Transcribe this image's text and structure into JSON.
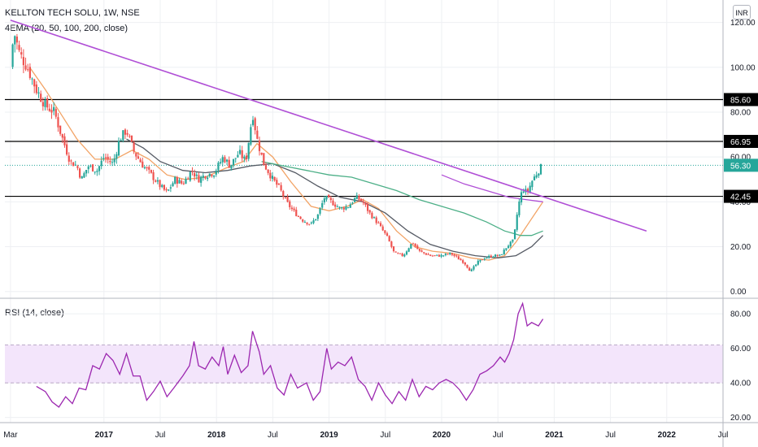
{
  "header": {
    "symbol": "KELLTON TECH SOLU, 1W, NSE",
    "indicator": "4EMA (20, 50, 100, 200, close)",
    "currency": "INR"
  },
  "rsi_panel": {
    "label": "RSI (14, close)"
  },
  "colors": {
    "up": "#26a69a",
    "down": "#ef5350",
    "trendline": "#b04fd6",
    "ema20": "#f2a365",
    "ema50": "#555a64",
    "ema100": "#4caf87",
    "rsi": "#9c27b0",
    "rsi_band": "#f3e5fb",
    "level_line": "#000000",
    "last_price": "#26a69a"
  },
  "chart_data": [
    {
      "type": "candlestick",
      "title": "KELLTON TECH SOLU, 1W, NSE",
      "y_ticks": [
        0,
        20,
        40,
        60,
        80,
        100,
        120
      ],
      "y_tick_labels": [
        "0.00",
        "20.00",
        "40.00",
        "60.00",
        "80.00",
        "100.00",
        "120.00"
      ],
      "ylim": [
        -3,
        130
      ],
      "x_ticks": [
        {
          "t": 2016.17,
          "label": "Mar"
        },
        {
          "t": 2017.0,
          "label": "2017"
        },
        {
          "t": 2017.5,
          "label": "Jul"
        },
        {
          "t": 2018.0,
          "label": "2018"
        },
        {
          "t": 2018.5,
          "label": "Jul"
        },
        {
          "t": 2019.0,
          "label": "2019"
        },
        {
          "t": 2019.5,
          "label": "Jul"
        },
        {
          "t": 2020.0,
          "label": "2020"
        },
        {
          "t": 2020.5,
          "label": "Jul"
        },
        {
          "t": 2021.0,
          "label": "2021"
        },
        {
          "t": 2021.5,
          "label": "Jul"
        },
        {
          "t": 2022.0,
          "label": "2022"
        },
        {
          "t": 2022.5,
          "label": "Jul"
        }
      ],
      "xlim": [
        2016.12,
        2022.5
      ],
      "horizontal_levels": [
        {
          "value": 85.6,
          "label": "85.60"
        },
        {
          "value": 66.95,
          "label": "66.95"
        },
        {
          "value": 42.45,
          "label": "42.45"
        }
      ],
      "last_price": {
        "value": 56.3,
        "label": "56.30"
      },
      "trendlines": [
        {
          "name": "",
          "points": [
            [
              2016.17,
              121
            ],
            [
              2021.82,
              27
            ]
          ]
        }
      ],
      "price_path": [
        [
          2016.17,
          100
        ],
        [
          2016.2,
          116
        ],
        [
          2016.25,
          106
        ],
        [
          2016.32,
          100
        ],
        [
          2016.4,
          90
        ],
        [
          2016.48,
          83
        ],
        [
          2016.56,
          80
        ],
        [
          2016.62,
          70
        ],
        [
          2016.7,
          58
        ],
        [
          2016.76,
          56
        ],
        [
          2016.8,
          50
        ],
        [
          2016.86,
          56
        ],
        [
          2016.94,
          54
        ],
        [
          2017.0,
          60
        ],
        [
          2017.08,
          57
        ],
        [
          2017.14,
          68
        ],
        [
          2017.2,
          72
        ],
        [
          2017.27,
          62
        ],
        [
          2017.35,
          56
        ],
        [
          2017.42,
          52
        ],
        [
          2017.5,
          47
        ],
        [
          2017.56,
          44
        ],
        [
          2017.63,
          50
        ],
        [
          2017.7,
          48
        ],
        [
          2017.78,
          54
        ],
        [
          2017.84,
          50
        ],
        [
          2017.9,
          52
        ],
        [
          2017.98,
          53
        ],
        [
          2018.06,
          60
        ],
        [
          2018.12,
          56
        ],
        [
          2018.2,
          62
        ],
        [
          2018.26,
          58
        ],
        [
          2018.3,
          72
        ],
        [
          2018.32,
          80
        ],
        [
          2018.36,
          68
        ],
        [
          2018.42,
          57
        ],
        [
          2018.5,
          50
        ],
        [
          2018.56,
          46
        ],
        [
          2018.62,
          40
        ],
        [
          2018.68,
          36
        ],
        [
          2018.76,
          32
        ],
        [
          2018.84,
          30
        ],
        [
          2018.9,
          34
        ],
        [
          2018.96,
          42
        ],
        [
          2019.02,
          40
        ],
        [
          2019.1,
          37
        ],
        [
          2019.17,
          38
        ],
        [
          2019.24,
          42
        ],
        [
          2019.3,
          40
        ],
        [
          2019.36,
          35
        ],
        [
          2019.44,
          30
        ],
        [
          2019.52,
          24
        ],
        [
          2019.58,
          17
        ],
        [
          2019.66,
          16
        ],
        [
          2019.74,
          22
        ],
        [
          2019.8,
          18
        ],
        [
          2019.9,
          16
        ],
        [
          2020.0,
          16
        ],
        [
          2020.08,
          17
        ],
        [
          2020.14,
          15
        ],
        [
          2020.2,
          13
        ],
        [
          2020.26,
          9
        ],
        [
          2020.32,
          13
        ],
        [
          2020.38,
          15
        ],
        [
          2020.46,
          16
        ],
        [
          2020.52,
          16
        ],
        [
          2020.58,
          20
        ],
        [
          2020.64,
          23
        ],
        [
          2020.68,
          38
        ],
        [
          2020.72,
          46
        ],
        [
          2020.76,
          44
        ],
        [
          2020.8,
          49
        ],
        [
          2020.86,
          54
        ],
        [
          2020.9,
          56.3
        ]
      ],
      "series": [
        {
          "name": "",
          "role": "ema20",
          "points": [
            [
              2016.34,
              100
            ],
            [
              2016.48,
              90
            ],
            [
              2016.62,
              79
            ],
            [
              2016.76,
              68
            ],
            [
              2016.92,
              59
            ],
            [
              2017.1,
              59
            ],
            [
              2017.25,
              63
            ],
            [
              2017.4,
              59
            ],
            [
              2017.56,
              52
            ],
            [
              2017.72,
              50
            ],
            [
              2017.9,
              51
            ],
            [
              2018.08,
              55
            ],
            [
              2018.24,
              58
            ],
            [
              2018.36,
              66
            ],
            [
              2018.5,
              60
            ],
            [
              2018.66,
              49
            ],
            [
              2018.84,
              38
            ],
            [
              2019.0,
              36
            ],
            [
              2019.16,
              38
            ],
            [
              2019.3,
              41
            ],
            [
              2019.44,
              37
            ],
            [
              2019.6,
              27
            ],
            [
              2019.76,
              20
            ],
            [
              2019.92,
              18
            ],
            [
              2020.1,
              17
            ],
            [
              2020.26,
              15
            ],
            [
              2020.42,
              14
            ],
            [
              2020.56,
              16
            ],
            [
              2020.66,
              22
            ],
            [
              2020.78,
              31
            ],
            [
              2020.9,
              40
            ]
          ]
        },
        {
          "name": "",
          "role": "ema50",
          "points": [
            [
              2017.2,
              68
            ],
            [
              2017.35,
              64
            ],
            [
              2017.5,
              58
            ],
            [
              2017.7,
              54
            ],
            [
              2017.9,
              53
            ],
            [
              2018.1,
              54
            ],
            [
              2018.3,
              56
            ],
            [
              2018.5,
              57
            ],
            [
              2018.7,
              53
            ],
            [
              2018.9,
              47
            ],
            [
              2019.1,
              42
            ],
            [
              2019.3,
              40
            ],
            [
              2019.5,
              35
            ],
            [
              2019.7,
              27
            ],
            [
              2019.9,
              21
            ],
            [
              2020.1,
              18
            ],
            [
              2020.3,
              16
            ],
            [
              2020.5,
              15
            ],
            [
              2020.66,
              16
            ],
            [
              2020.8,
              20
            ],
            [
              2020.9,
              25
            ]
          ]
        },
        {
          "name": "",
          "role": "ema100",
          "points": [
            [
              2018.4,
              58
            ],
            [
              2018.6,
              56
            ],
            [
              2018.8,
              54
            ],
            [
              2019.0,
              52
            ],
            [
              2019.2,
              51
            ],
            [
              2019.4,
              48
            ],
            [
              2019.6,
              45
            ],
            [
              2019.8,
              41
            ],
            [
              2020.0,
              38
            ],
            [
              2020.2,
              35
            ],
            [
              2020.4,
              31
            ],
            [
              2020.56,
              27
            ],
            [
              2020.7,
              25
            ],
            [
              2020.8,
              25
            ],
            [
              2020.9,
              27
            ]
          ]
        },
        {
          "name": "",
          "role": "ema200",
          "points": [
            [
              2020.0,
              52
            ],
            [
              2020.2,
              48
            ],
            [
              2020.4,
              45
            ],
            [
              2020.6,
              42
            ],
            [
              2020.75,
              41
            ],
            [
              2020.9,
              40
            ]
          ]
        }
      ]
    },
    {
      "type": "line",
      "title": "RSI (14, close)",
      "y_ticks": [
        20,
        40,
        60,
        80
      ],
      "y_tick_labels": [
        "20.00",
        "40.00",
        "60.00",
        "80.00"
      ],
      "ylim": [
        17,
        89
      ],
      "band": [
        40,
        62
      ],
      "series": [
        {
          "name": "",
          "points": [
            [
              2016.4,
              38
            ],
            [
              2016.48,
              35
            ],
            [
              2016.54,
              29
            ],
            [
              2016.6,
              26
            ],
            [
              2016.66,
              32
            ],
            [
              2016.72,
              28
            ],
            [
              2016.78,
              37
            ],
            [
              2016.84,
              36
            ],
            [
              2016.9,
              50
            ],
            [
              2016.96,
              48
            ],
            [
              2017.02,
              57
            ],
            [
              2017.08,
              53
            ],
            [
              2017.14,
              45
            ],
            [
              2017.2,
              57
            ],
            [
              2017.26,
              44
            ],
            [
              2017.32,
              44
            ],
            [
              2017.38,
              30
            ],
            [
              2017.44,
              35
            ],
            [
              2017.5,
              41
            ],
            [
              2017.56,
              32
            ],
            [
              2017.62,
              37
            ],
            [
              2017.7,
              44
            ],
            [
              2017.76,
              50
            ],
            [
              2017.8,
              64
            ],
            [
              2017.84,
              50
            ],
            [
              2017.9,
              48
            ],
            [
              2017.96,
              55
            ],
            [
              2018.02,
              50
            ],
            [
              2018.06,
              61
            ],
            [
              2018.1,
              45
            ],
            [
              2018.16,
              56
            ],
            [
              2018.22,
              46
            ],
            [
              2018.28,
              50
            ],
            [
              2018.32,
              70
            ],
            [
              2018.38,
              58
            ],
            [
              2018.42,
              45
            ],
            [
              2018.48,
              50
            ],
            [
              2018.54,
              37
            ],
            [
              2018.6,
              33
            ],
            [
              2018.66,
              45
            ],
            [
              2018.72,
              37
            ],
            [
              2018.8,
              40
            ],
            [
              2018.86,
              30
            ],
            [
              2018.92,
              35
            ],
            [
              2018.98,
              60
            ],
            [
              2019.02,
              48
            ],
            [
              2019.08,
              52
            ],
            [
              2019.14,
              50
            ],
            [
              2019.2,
              55
            ],
            [
              2019.26,
              42
            ],
            [
              2019.32,
              38
            ],
            [
              2019.38,
              30
            ],
            [
              2019.44,
              40
            ],
            [
              2019.5,
              33
            ],
            [
              2019.56,
              28
            ],
            [
              2019.62,
              35
            ],
            [
              2019.68,
              30
            ],
            [
              2019.74,
              42
            ],
            [
              2019.8,
              32
            ],
            [
              2019.86,
              38
            ],
            [
              2019.92,
              36
            ],
            [
              2019.98,
              40
            ],
            [
              2020.04,
              42
            ],
            [
              2020.1,
              40
            ],
            [
              2020.16,
              36
            ],
            [
              2020.22,
              30
            ],
            [
              2020.28,
              36
            ],
            [
              2020.34,
              45
            ],
            [
              2020.4,
              47
            ],
            [
              2020.46,
              50
            ],
            [
              2020.52,
              55
            ],
            [
              2020.56,
              52
            ],
            [
              2020.6,
              57
            ],
            [
              2020.64,
              65
            ],
            [
              2020.68,
              80
            ],
            [
              2020.72,
              86
            ],
            [
              2020.76,
              73
            ],
            [
              2020.8,
              75
            ],
            [
              2020.86,
              73
            ],
            [
              2020.9,
              77
            ]
          ]
        }
      ]
    }
  ]
}
